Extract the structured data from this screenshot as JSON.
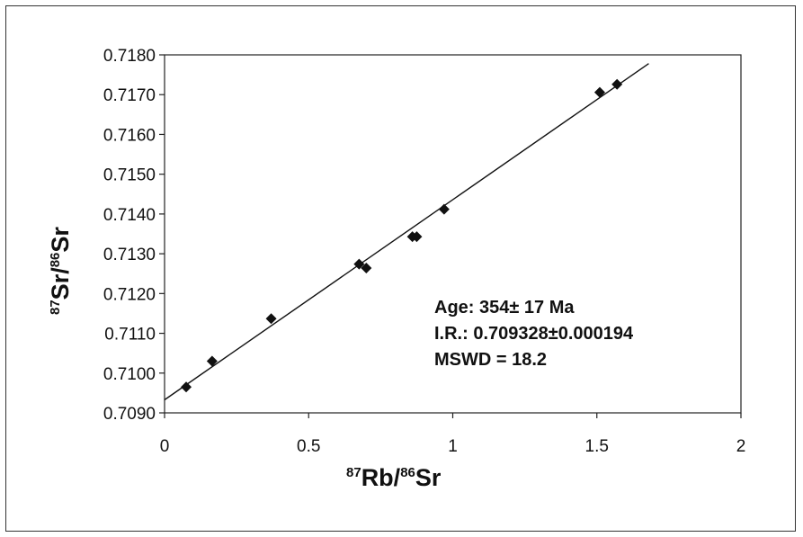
{
  "chart_data": {
    "type": "scatter",
    "xlabel": {
      "sup1": "87",
      "base1": "Rb/",
      "sup2": "86",
      "base2": "Sr"
    },
    "ylabel": {
      "sup1": "87",
      "base1": "Sr/",
      "sup2": "86",
      "base2": "Sr"
    },
    "xlim": [
      0,
      2
    ],
    "ylim": [
      0.709,
      0.718
    ],
    "xticks": [
      0,
      0.5,
      1,
      1.5,
      2
    ],
    "xtick_labels": [
      "0",
      "0.5",
      "1",
      "1.5",
      "2"
    ],
    "yticks": [
      0.709,
      0.71,
      0.711,
      0.712,
      0.713,
      0.714,
      0.715,
      0.716,
      0.717,
      0.718
    ],
    "ytick_labels": [
      "0.7090",
      "0.7100",
      "0.7110",
      "0.7120",
      "0.7130",
      "0.7140",
      "0.7150",
      "0.7160",
      "0.7170",
      "0.7180"
    ],
    "grid": false,
    "marker": "diamond",
    "color": "#111111",
    "points": [
      {
        "x": 0.075,
        "y": 0.70965
      },
      {
        "x": 0.165,
        "y": 0.7103
      },
      {
        "x": 0.37,
        "y": 0.71137
      },
      {
        "x": 0.675,
        "y": 0.71274
      },
      {
        "x": 0.7,
        "y": 0.71264
      },
      {
        "x": 0.86,
        "y": 0.71343
      },
      {
        "x": 0.875,
        "y": 0.71343
      },
      {
        "x": 0.97,
        "y": 0.71412
      },
      {
        "x": 1.51,
        "y": 0.71706
      },
      {
        "x": 1.57,
        "y": 0.71726
      }
    ],
    "fit_line": {
      "x": [
        0,
        1.68
      ],
      "y": [
        0.709328,
        0.71778
      ]
    },
    "annotations": [
      "Age: 354± 17 Ma",
      "I.R.: 0.709328±0.000194",
      "MSWD = 18.2"
    ]
  }
}
